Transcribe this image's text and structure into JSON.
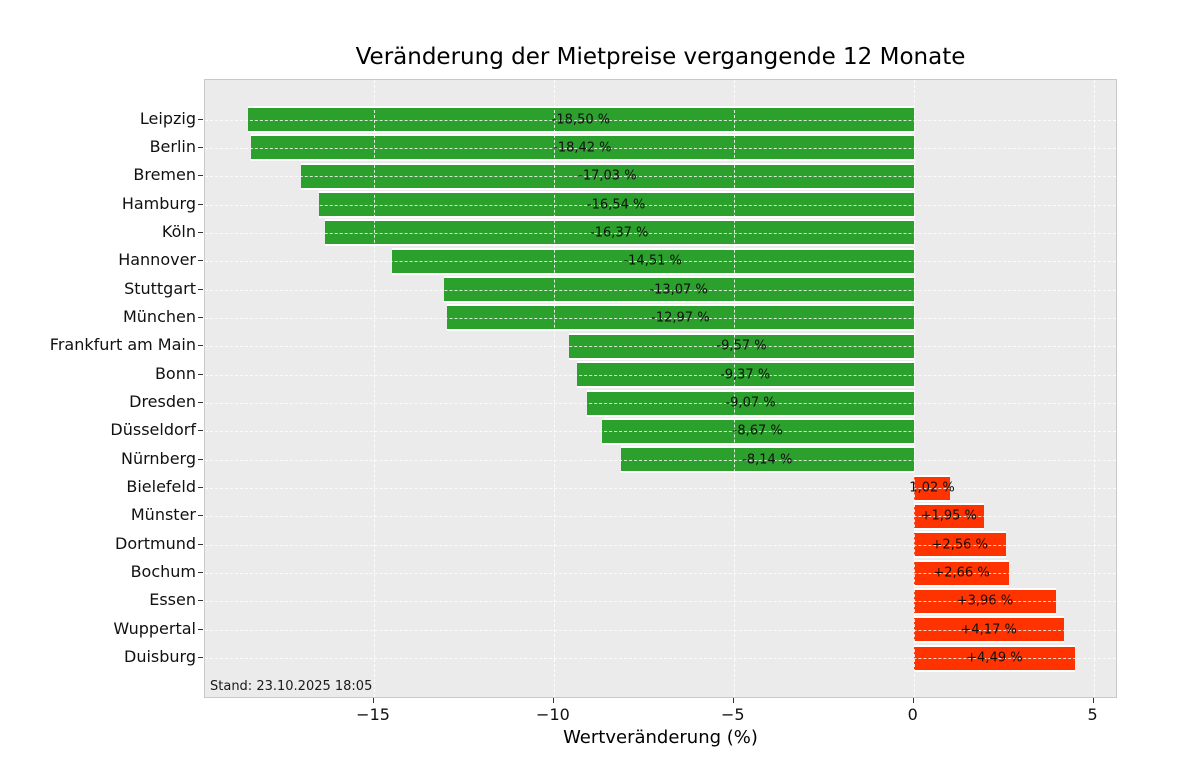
{
  "chart_data": {
    "type": "bar",
    "orientation": "horizontal",
    "title": "Veränderung der Mietpreise vergangende 12 Monate",
    "xlabel": "Wertveränderung (%)",
    "ylabel": "",
    "annotation": "Stand: 23.10.2025 18:05",
    "categories": [
      "Leipzig",
      "Berlin",
      "Bremen",
      "Hamburg",
      "Köln",
      "Hannover",
      "Stuttgart",
      "München",
      "Frankfurt am Main",
      "Bonn",
      "Dresden",
      "Düsseldorf",
      "Nürnberg",
      "Bielefeld",
      "Münster",
      "Dortmund",
      "Bochum",
      "Essen",
      "Wuppertal",
      "Duisburg"
    ],
    "values": [
      -18.5,
      -18.42,
      -17.03,
      -16.54,
      -16.37,
      -14.51,
      -13.07,
      -12.97,
      -9.57,
      -9.37,
      -9.07,
      -8.67,
      -8.14,
      1.02,
      1.95,
      2.56,
      2.66,
      3.96,
      4.17,
      4.49
    ],
    "value_labels": [
      "-18,50 %",
      "-18,42 %",
      "-17,03 %",
      "-16,54 %",
      "-16,37 %",
      "-14,51 %",
      "-13,07 %",
      "-12,97 %",
      "-9,57 %",
      "-9,37 %",
      "-9,07 %",
      "-8,67 %",
      "-8,14 %",
      "1,02 %",
      "+1,95 %",
      "+2,56 %",
      "+2,66 %",
      "+3,96 %",
      "+4,17 %",
      "+4,49 %"
    ],
    "xlim": [
      -19.7,
      5.68
    ],
    "xticks": [
      -15,
      -10,
      -5,
      0,
      5
    ],
    "xtick_labels": [
      "−15",
      "−10",
      "−5",
      "0",
      "5"
    ],
    "grid": "dashed white; vertical at x ticks, horizontal at each category",
    "legend": "none",
    "colors": {
      "negative_bar": "#2ca02c",
      "positive_bar": "#ff3300",
      "plot_background": "#ebebeb",
      "figure_background": "#ffffff",
      "gridline": "rgba(255,255,255,0.85)",
      "text": "#111111"
    }
  }
}
